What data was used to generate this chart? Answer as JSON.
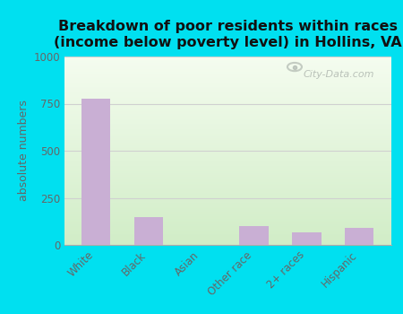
{
  "categories": [
    "White",
    "Black",
    "Asian",
    "Other race",
    "2+ races",
    "Hispanic"
  ],
  "values": [
    775,
    150,
    0,
    100,
    65,
    90
  ],
  "bar_color": "#c9afd4",
  "title": "Breakdown of poor residents within races\n(income below poverty level) in Hollins, VA",
  "ylabel": "absolute numbers",
  "ylim": [
    0,
    1000
  ],
  "yticks": [
    0,
    250,
    500,
    750,
    1000
  ],
  "bg_top_left": "#d8f0d0",
  "bg_top_right": "#f4faf0",
  "bg_bottom_left": "#c8ecc0",
  "bg_bottom_right": "#e8f5e0",
  "outer_background": "#00e0f0",
  "title_fontsize": 11.5,
  "axis_label_fontsize": 9,
  "tick_fontsize": 8.5,
  "watermark": "City-Data.com",
  "grid_color": "#d0d0d0"
}
